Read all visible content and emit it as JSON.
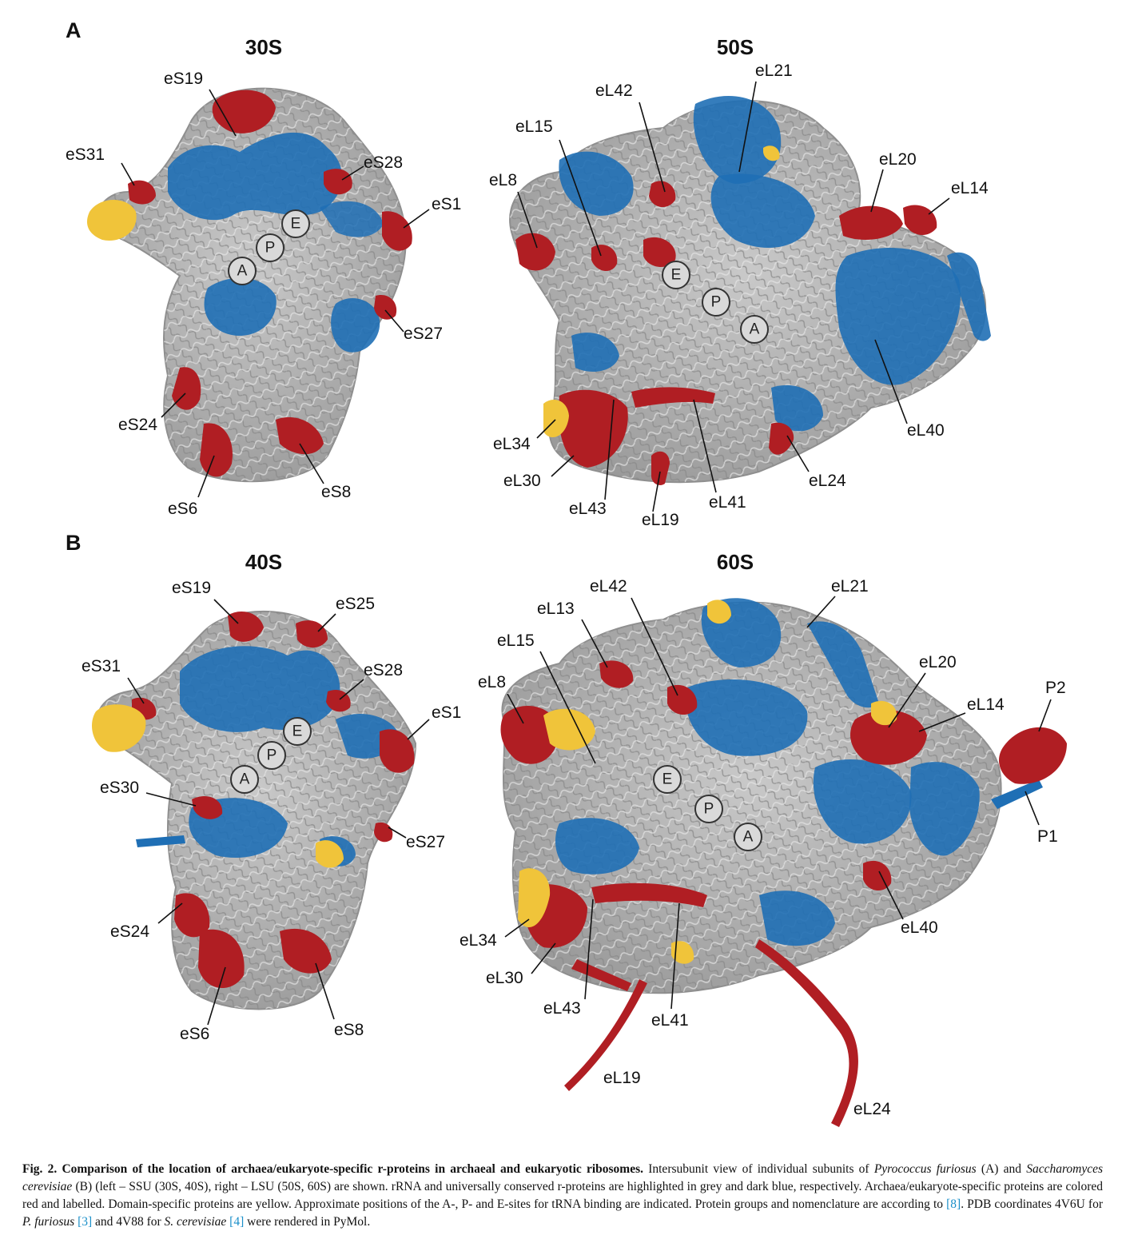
{
  "panels": {
    "a": {
      "letter": "A",
      "left_title": "30S",
      "right_title": "50S",
      "left_labels": [
        "eS19",
        "eS31",
        "eS28",
        "eS1",
        "eS27",
        "eS24",
        "eS6",
        "eS8"
      ],
      "right_labels": [
        "eL21",
        "eL42",
        "eL15",
        "eL8",
        "eL20",
        "eL14",
        "eL40",
        "eL34",
        "eL30",
        "eL43",
        "eL19",
        "eL41",
        "eL24"
      ],
      "sites": [
        "A",
        "P",
        "E"
      ]
    },
    "b": {
      "letter": "B",
      "left_title": "40S",
      "right_title": "60S",
      "left_labels": [
        "eS19",
        "eS25",
        "eS31",
        "eS28",
        "eS1",
        "eS30",
        "eS27",
        "eS24",
        "eS6",
        "eS8"
      ],
      "right_labels": [
        "eL42",
        "eL21",
        "eL13",
        "eL15",
        "eL8",
        "eL20",
        "eL14",
        "P2",
        "P1",
        "eL40",
        "eL34",
        "eL30",
        "eL43",
        "eL41",
        "eL19",
        "eL24"
      ],
      "sites": [
        "A",
        "P",
        "E"
      ]
    }
  },
  "colors": {
    "rrna_grey": "#b8b8b8",
    "conserved_blue": "#1f6fb5",
    "specific_red": "#b01e23",
    "domain_yellow": "#f0c43a"
  },
  "caption": {
    "fig_label": "Fig. 2.",
    "title": "Comparison of the location of archaea/eukaryote-specific r-proteins in archaeal and eukaryotic ribosomes.",
    "s1": "Intersubunit view of individual subunits of",
    "sp1": "Pyrococcus furiosus",
    "s2": "(A) and",
    "sp2": "Saccharomyces cerevisiae",
    "s3": "(B) (left – SSU (30S, 40S), right – LSU (50S, 60S) are shown. rRNA and universally conserved r-proteins are highlighted in grey and dark blue, respectively. Archaea/eukaryote-specific proteins are colored red and labelled. Domain-specific proteins are yellow. Approximate positions of the A-, P- and E-sites for tRNA binding are indicated. Protein groups and nomenclature are according to",
    "ref1": "[8]",
    "s4": ". PDB coordinates 4V6U for",
    "sp3": "P. furiosus",
    "ref2": "[3]",
    "s5": "and 4V88 for",
    "sp4": "S. cerevisiae",
    "ref3": "[4]",
    "s6": "were rendered in PyMol."
  }
}
